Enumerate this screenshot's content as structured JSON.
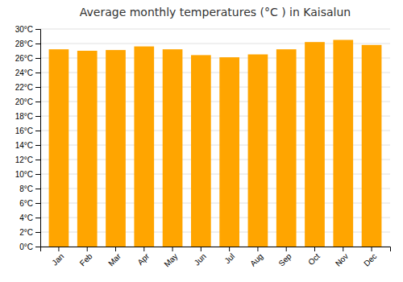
{
  "chart_data": {
    "type": "bar",
    "title": "Average monthly temperatures (°C ) in Kaisalun",
    "categories": [
      "Jan",
      "Feb",
      "Mar",
      "Apr",
      "May",
      "Jun",
      "Jul",
      "Aug",
      "Sep",
      "Oct",
      "Nov",
      "Dec"
    ],
    "values": [
      27.2,
      27.0,
      27.1,
      27.6,
      27.2,
      26.4,
      26.1,
      26.5,
      27.2,
      28.2,
      28.5,
      27.8
    ],
    "color": "#FFA500",
    "ylim": [
      0,
      30
    ],
    "yticks": [
      {
        "value": 0,
        "label": "0°C"
      },
      {
        "value": 2,
        "label": "2°C"
      },
      {
        "value": 4,
        "label": "4°C"
      },
      {
        "value": 6,
        "label": "6°C"
      },
      {
        "value": 8,
        "label": "8°C"
      },
      {
        "value": 10,
        "label": "10°C"
      },
      {
        "value": 12,
        "label": "12°C"
      },
      {
        "value": 14,
        "label": "14°C"
      },
      {
        "value": 16,
        "label": "16°C"
      },
      {
        "value": 18,
        "label": "18°C"
      },
      {
        "value": 20,
        "label": "20°C"
      },
      {
        "value": 22,
        "label": "22°C"
      },
      {
        "value": 24,
        "label": "24°C"
      },
      {
        "value": 26,
        "label": "26°C"
      },
      {
        "value": 28,
        "label": "28°C"
      },
      {
        "value": 30,
        "label": "30°C"
      }
    ],
    "grid": true
  }
}
